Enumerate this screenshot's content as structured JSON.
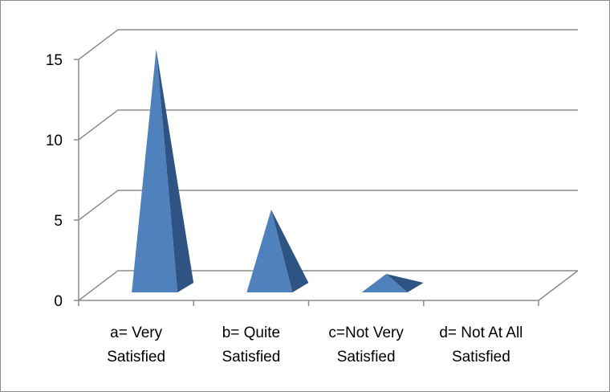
{
  "chart_data": {
    "type": "bar",
    "bar_shape": "3d-pyramid",
    "categories": [
      [
        "a= Very",
        "Satisfied"
      ],
      [
        "b= Quite",
        "Satisfied"
      ],
      [
        "c=Not Very",
        "Satisfied"
      ],
      [
        "d= Not At All",
        "Satisfied"
      ]
    ],
    "values": [
      15,
      5,
      1,
      0
    ],
    "yticks": [
      0,
      5,
      10,
      15
    ],
    "ylim": [
      0,
      17
    ],
    "grid": true,
    "legend": "none",
    "colors": {
      "face": "#4f81bd",
      "face_dark": "#2f5382",
      "face_mid": "#5b8fd0",
      "grid": "#8c8c8c"
    }
  }
}
